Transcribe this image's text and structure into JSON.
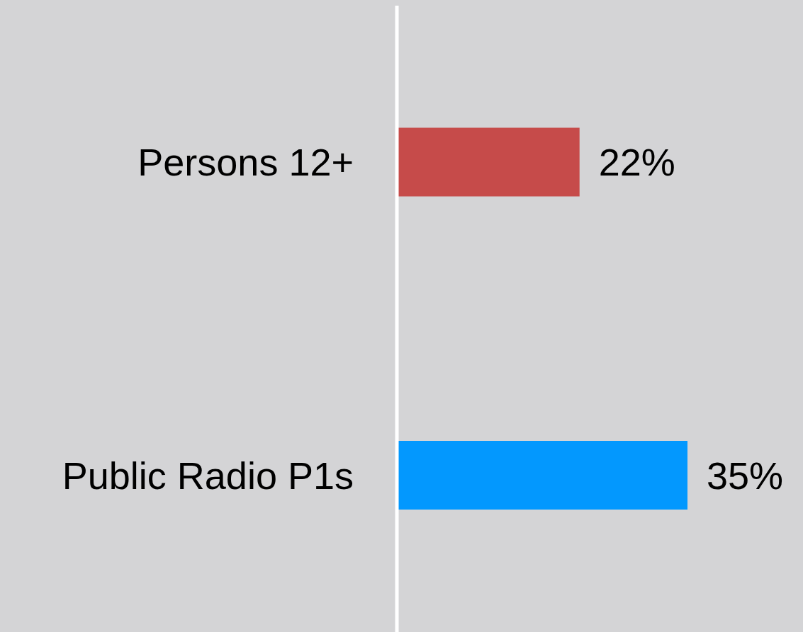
{
  "chart_data": {
    "type": "bar",
    "orientation": "horizontal",
    "categories": [
      "Persons 12+",
      "Public Radio P1s"
    ],
    "values": [
      22,
      35
    ],
    "colors": [
      "#c64b4a",
      "#0398fe"
    ],
    "value_labels": [
      "22%",
      "35%"
    ]
  }
}
